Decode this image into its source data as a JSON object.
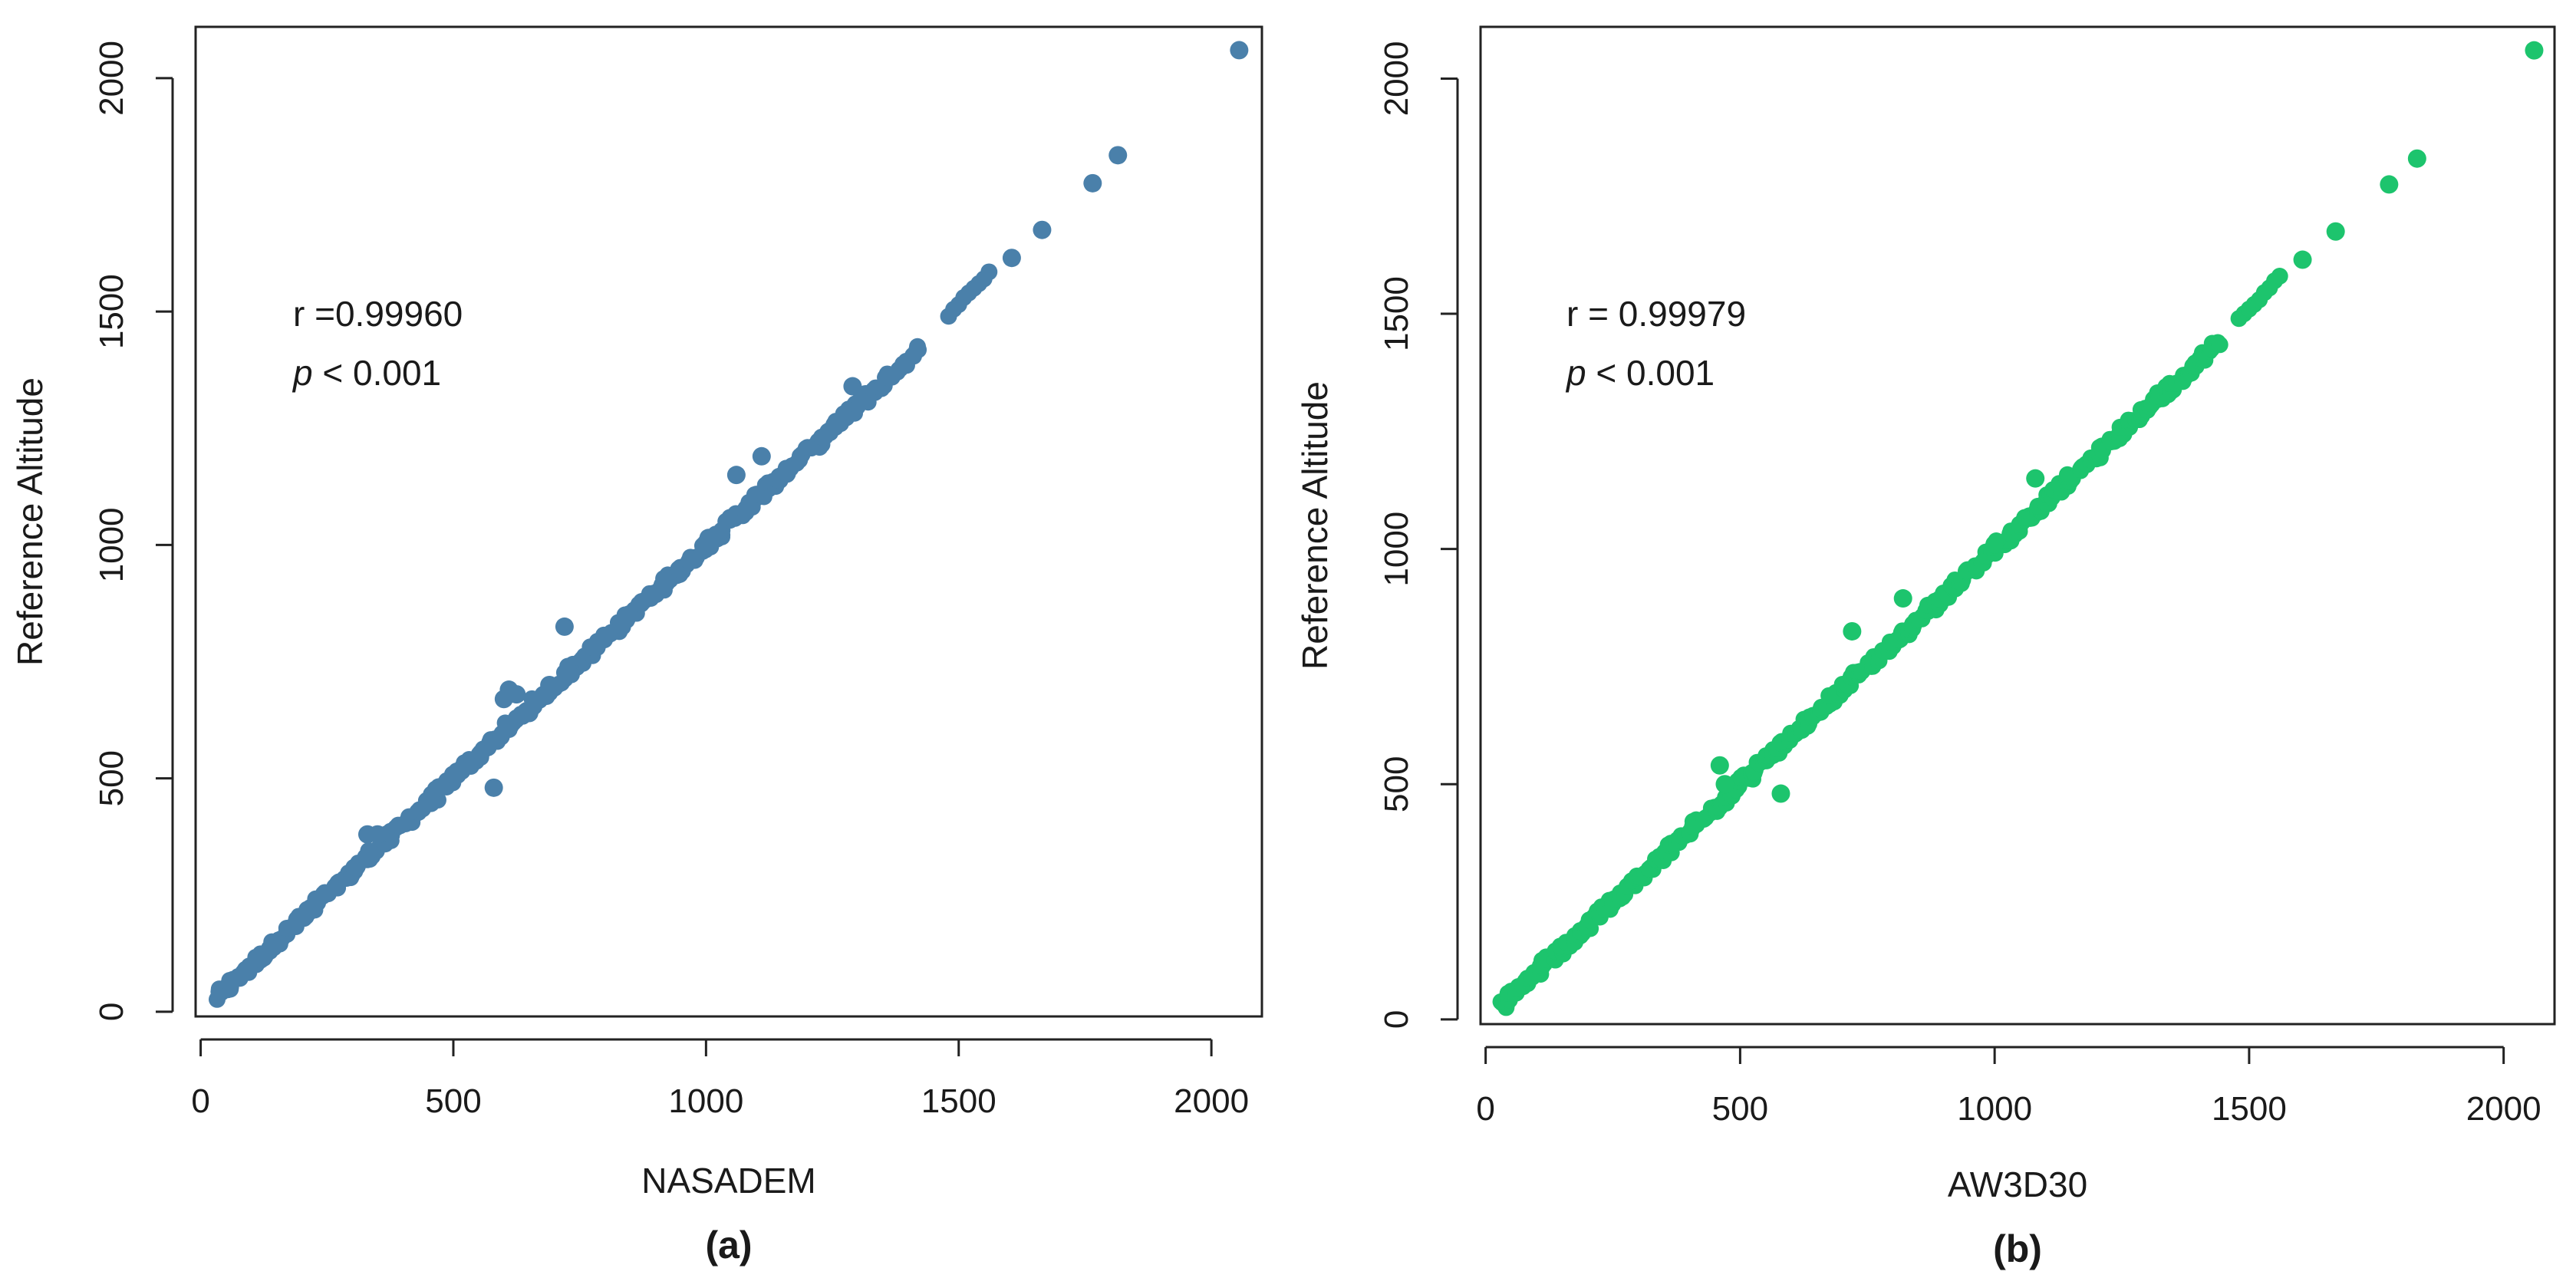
{
  "figure": {
    "panel_ids": [
      "a",
      "b"
    ]
  },
  "chart_data": [
    {
      "id": "a",
      "type": "scatter",
      "panel_label": "(a)",
      "xlabel": "NASADEM",
      "ylabel": "Reference Altitude",
      "xlim": [
        -10,
        2100
      ],
      "ylim": [
        -10,
        2110
      ],
      "xticks": [
        0,
        500,
        1000,
        1500,
        2000
      ],
      "yticks": [
        0,
        500,
        1000,
        1500,
        2000
      ],
      "stat_r": "r =0.99960",
      "stat_p_symbol": "p",
      "stat_p_value": " < 0.001",
      "color": "#4a80aa",
      "points": {
        "dense_range": [
          30,
          1420
        ],
        "dense_step": 4,
        "cluster": [
          [
            1480,
            1490
          ],
          [
            1490,
            1505
          ],
          [
            1500,
            1515
          ],
          [
            1510,
            1530
          ],
          [
            1520,
            1540
          ],
          [
            1530,
            1550
          ],
          [
            1540,
            1560
          ],
          [
            1550,
            1570
          ],
          [
            1560,
            1585
          ]
        ],
        "outliers": [
          [
            580,
            480
          ],
          [
            720,
            825
          ],
          [
            1060,
            1150
          ],
          [
            1110,
            1190
          ],
          [
            610,
            690
          ],
          [
            600,
            670
          ],
          [
            625,
            680
          ],
          [
            650,
            640
          ],
          [
            690,
            700
          ],
          [
            1290,
            1340
          ],
          [
            1005,
            1015
          ],
          [
            330,
            380
          ],
          [
            350,
            380
          ],
          [
            1605,
            1615
          ],
          [
            1665,
            1675
          ],
          [
            1765,
            1775
          ],
          [
            1815,
            1835
          ],
          [
            2055,
            2060
          ]
        ]
      }
    },
    {
      "id": "b",
      "type": "scatter",
      "panel_label": "(b)",
      "xlabel": "AW3D30",
      "ylabel": "Reference Altitude",
      "xlim": [
        -10,
        2100
      ],
      "ylim": [
        -10,
        2110
      ],
      "xticks": [
        0,
        500,
        1000,
        1500,
        2000
      ],
      "yticks": [
        0,
        500,
        1000,
        1500,
        2000
      ],
      "stat_r": "r =  0.99979",
      "stat_p_symbol": "p",
      "stat_p_value": " < 0.001",
      "color": "#1dc46d",
      "points": {
        "dense_range": [
          30,
          1440
        ],
        "dense_step": 4,
        "cluster": [
          [
            1480,
            1490
          ],
          [
            1490,
            1500
          ],
          [
            1500,
            1510
          ],
          [
            1510,
            1520
          ],
          [
            1520,
            1530
          ],
          [
            1530,
            1545
          ],
          [
            1540,
            1555
          ],
          [
            1550,
            1570
          ],
          [
            1560,
            1580
          ]
        ],
        "outliers": [
          [
            580,
            480
          ],
          [
            720,
            825
          ],
          [
            820,
            895
          ],
          [
            1080,
            1150
          ],
          [
            1000,
            1010
          ],
          [
            470,
            500
          ],
          [
            460,
            540
          ],
          [
            1605,
            1615
          ],
          [
            1670,
            1675
          ],
          [
            1775,
            1775
          ],
          [
            1830,
            1830
          ],
          [
            2060,
            2060
          ]
        ]
      }
    }
  ]
}
